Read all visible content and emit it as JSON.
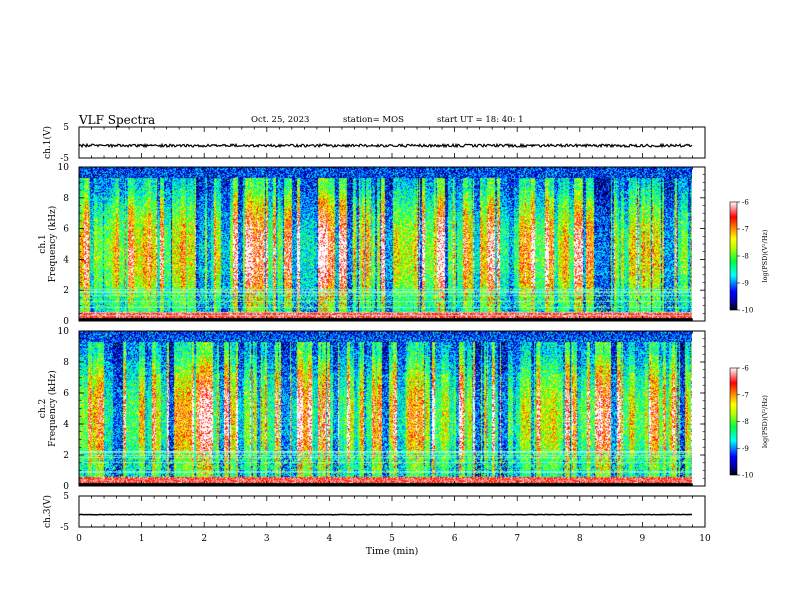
{
  "header": {
    "title": "VLF Spectra",
    "date": "Oct. 25, 2023",
    "station": "station= MOS",
    "start": "start  UT =   18: 40: 1"
  },
  "chart_data": [
    {
      "type": "line",
      "panel": "ch1-voltage",
      "ylabel": "ch.1(V)",
      "ylim": [
        -5,
        5
      ],
      "yticks": [
        "5",
        "-5"
      ],
      "xlim": [
        0,
        10
      ],
      "series": [
        {
          "values": [
            [
              0,
              -1.0
            ],
            [
              9.8,
              -1.0
            ]
          ]
        }
      ],
      "grid": false
    },
    {
      "type": "heatmap",
      "panel": "ch1-spectrogram",
      "ylabel": "ch.1\nFrequency (kHz)",
      "ylim": [
        0,
        10
      ],
      "yticks": [
        "0",
        "2",
        "4",
        "6",
        "8",
        "10"
      ],
      "xlim": [
        0,
        10
      ],
      "data_xmax": 9.8,
      "colorbar": {
        "label": "log(PSD)(V²/Hz)",
        "range": [
          -10,
          -6
        ],
        "ticks": [
          "-6",
          "-7",
          "-8",
          "-9",
          "-10"
        ]
      }
    },
    {
      "type": "heatmap",
      "panel": "ch2-spectrogram",
      "ylabel": "ch.2\nFrequency (kHz)",
      "ylim": [
        0,
        10
      ],
      "yticks": [
        "0",
        "2",
        "4",
        "6",
        "8",
        "10"
      ],
      "xlim": [
        0,
        10
      ],
      "data_xmax": 9.8,
      "colorbar": {
        "label": "log(PSD)(V²/Hz)",
        "range": [
          -10,
          -6
        ],
        "ticks": [
          "-6",
          "-7",
          "-8",
          "-9",
          "-10"
        ]
      }
    },
    {
      "type": "line",
      "panel": "ch3-voltage",
      "ylabel": "ch.3(V)",
      "ylim": [
        -5,
        5
      ],
      "yticks": [
        "5",
        "-5"
      ],
      "xlim": [
        0,
        10
      ],
      "xlabel": "Time (min)",
      "xticks": [
        "0",
        "1",
        "2",
        "3",
        "4",
        "5",
        "6",
        "7",
        "8",
        "9",
        "10"
      ],
      "series": [
        {
          "values": [
            [
              0,
              -1.0
            ],
            [
              9.8,
              -1.0
            ]
          ]
        }
      ],
      "grid": false
    }
  ],
  "colors": {
    "colormap": [
      "#000000",
      "#000080",
      "#0000ff",
      "#00a0ff",
      "#00ffff",
      "#00ff60",
      "#80ff00",
      "#ffff00",
      "#ffa000",
      "#ff0000",
      "#ffffff"
    ]
  }
}
